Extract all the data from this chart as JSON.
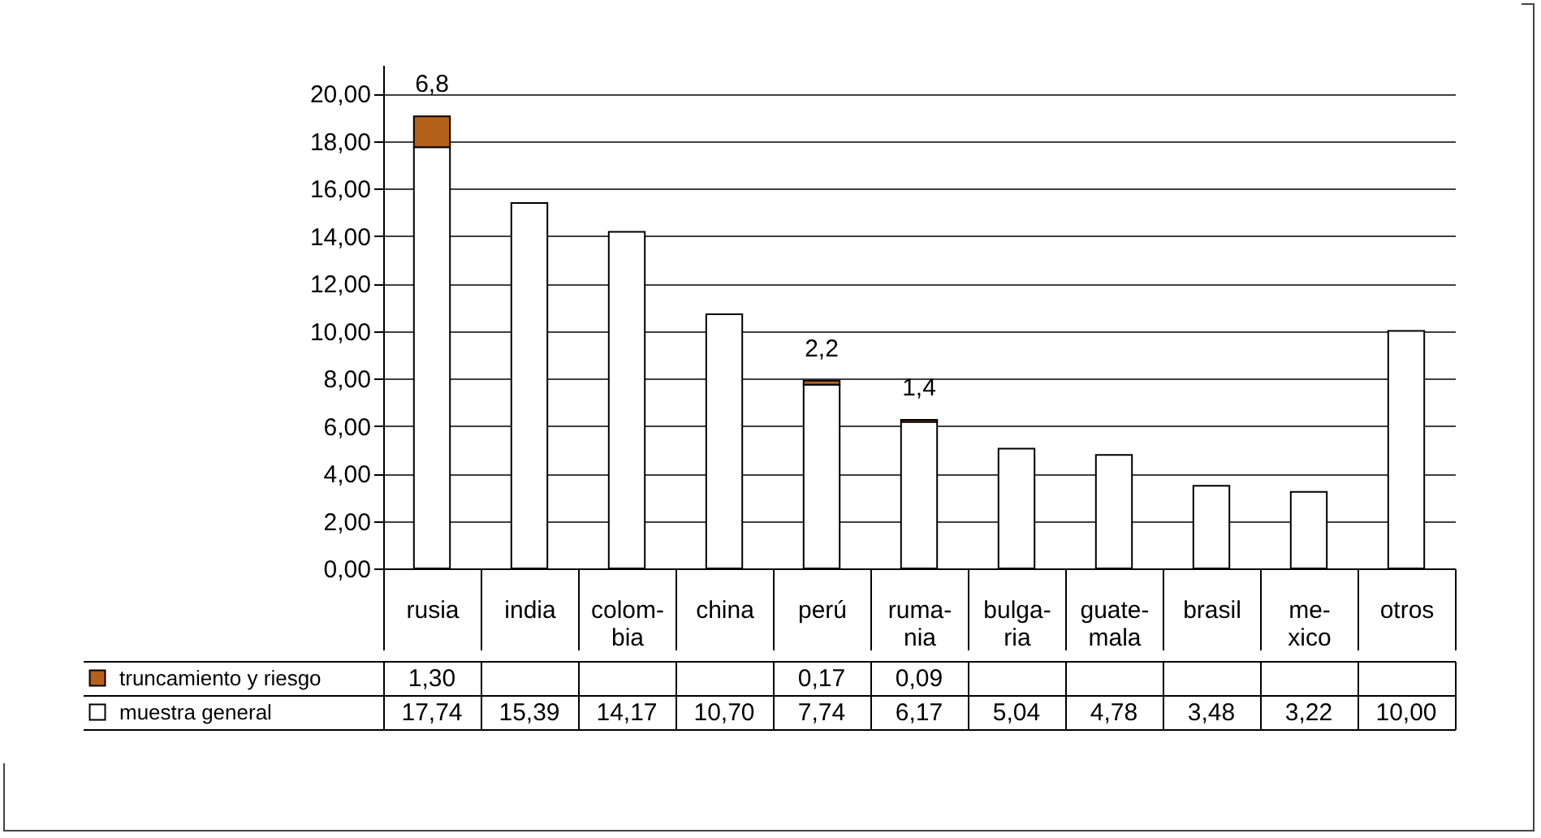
{
  "chart_data": {
    "type": "bar",
    "stacked": true,
    "categories": [
      "rusia",
      "india",
      "colom-bia",
      "china",
      "perú",
      "ruma-nia",
      "bulga-ria",
      "guate-mala",
      "brasil",
      "me-xico",
      "otros"
    ],
    "series": [
      {
        "name": "muestra general",
        "color": "#ffffff",
        "values": [
          17.74,
          15.39,
          14.17,
          10.7,
          7.74,
          6.17,
          5.04,
          4.78,
          3.48,
          3.22,
          10.0
        ],
        "value_labels": [
          "17,74",
          "15,39",
          "14,17",
          "10,70",
          "7,74",
          "6,17",
          "5,04",
          "4,78",
          "3,48",
          "3,22",
          "10,00"
        ]
      },
      {
        "name": "truncamiento y riesgo",
        "color": "#b5601b",
        "values": [
          1.3,
          null,
          null,
          null,
          0.17,
          0.09,
          null,
          null,
          null,
          null,
          null
        ],
        "value_labels": [
          "1,30",
          null,
          null,
          null,
          "0,17",
          "0,09",
          null,
          null,
          null,
          null,
          null
        ]
      }
    ],
    "ylim": [
      0,
      21.2
    ],
    "yticks": [
      {
        "value": 0,
        "label": "0,00"
      },
      {
        "value": 2,
        "label": "2,00"
      },
      {
        "value": 4,
        "label": "4,00"
      },
      {
        "value": 6,
        "label": "6,00"
      },
      {
        "value": 8,
        "label": "8,00"
      },
      {
        "value": 10,
        "label": "10,00"
      },
      {
        "value": 12,
        "label": "12,00"
      },
      {
        "value": 14,
        "label": "14,00"
      },
      {
        "value": 16,
        "label": "16,00"
      },
      {
        "value": 18,
        "label": "18,00"
      },
      {
        "value": 20,
        "label": "20,00"
      }
    ],
    "grid": "y",
    "legend": "bottom",
    "annotations": [
      {
        "text": "6,8",
        "x": "rusia",
        "y": 19.04
      },
      {
        "text": "2,2",
        "x": "perú",
        "y": 7.91
      },
      {
        "text": "1,4",
        "x": "ruma-nia",
        "y": 6.26
      }
    ]
  }
}
